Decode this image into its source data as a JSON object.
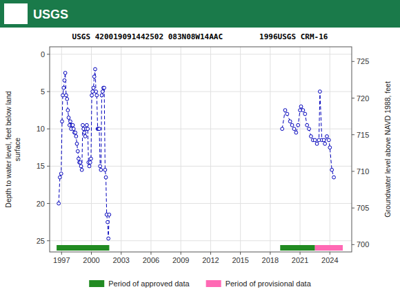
{
  "chart_data": {
    "type": "line",
    "header": "USGS",
    "title": "USGS 420019091442502 083N08W14AAC        1996USGS CRM-16",
    "y_label": "Depth to water level, feet below land\nsurface",
    "y2_label": "Groundwater level above NAVD 1988, feet",
    "xlim": [
      1995.8,
      2026.2
    ],
    "xticks": [
      1997,
      2000,
      2003,
      2006,
      2009,
      2012,
      2015,
      2018,
      2021,
      2024
    ],
    "ylim": [
      26.5,
      -1.0
    ],
    "yticks": [
      0,
      5,
      10,
      15,
      20,
      25
    ],
    "y2lim": [
      699.0,
      727.0
    ],
    "y2ticks": [
      700,
      705,
      710,
      715,
      720,
      725
    ],
    "grid": true,
    "legend": "bottom",
    "series": [
      {
        "color": "#0000bb",
        "marker": "circle",
        "line_style": "dashed",
        "x": [
          1996.71,
          1996.83,
          1996.96,
          1997.05,
          1997.12,
          1997.21,
          1997.29,
          1997.37,
          1997.46,
          1997.55,
          1997.63,
          1997.71,
          1997.8,
          1997.88,
          1997.96,
          1998.04,
          1998.13,
          1998.21,
          1998.29,
          1998.38,
          1998.46,
          1998.54,
          1998.63,
          1998.71,
          1998.79,
          1998.88,
          1998.96,
          1999.04,
          1999.13,
          1999.21,
          1999.29,
          1999.38,
          1999.46,
          1999.54,
          1999.63,
          1999.71,
          1999.79,
          1999.88,
          1999.96,
          2000.04,
          2000.12,
          2000.21,
          2000.29,
          2000.38,
          2000.46,
          2000.54,
          2000.63,
          2000.71,
          2000.79,
          2000.88,
          2000.96,
          2001.04,
          2001.13,
          2001.21,
          2001.29,
          2001.38,
          2001.46,
          2001.54,
          2001.63,
          2001.71,
          2001.79
        ],
        "values": [
          20.0,
          16.5,
          16.0,
          9.0,
          5.5,
          4.5,
          3.5,
          2.5,
          5.5,
          6.0,
          7.5,
          8.5,
          9.5,
          9.0,
          10.0,
          9.5,
          9.5,
          10.0,
          10.5,
          10.5,
          11.0,
          12.0,
          13.0,
          14.0,
          14.5,
          14.5,
          15.0,
          15.5,
          9.5,
          10.0,
          10.5,
          11.0,
          10.0,
          9.5,
          10.0,
          14.5,
          15.0,
          14.5,
          14.0,
          5.5,
          5.0,
          4.5,
          3.0,
          2.0,
          5.0,
          5.5,
          10.0,
          10.0,
          10.0,
          15.0,
          15.5,
          5.5,
          5.0,
          4.5,
          4.5,
          15.5,
          16.5,
          21.5,
          22.5,
          24.7,
          21.5
        ]
      },
      {
        "color": "#0000bb",
        "marker": "circle",
        "line_style": "dashed",
        "x": [
          2019.2,
          2019.5,
          2019.7,
          2020.0,
          2020.2,
          2020.4,
          2020.6,
          2020.8,
          2021.0,
          2021.1,
          2021.3,
          2021.5,
          2021.7,
          2021.9,
          2022.1,
          2022.3
        ],
        "values": [
          10.0,
          7.5,
          8.0,
          9.0,
          9.5,
          10.0,
          10.5,
          9.5,
          7.5,
          7.0,
          7.5,
          8.0,
          9.5,
          10.0,
          11.0,
          11.5
        ]
      },
      {
        "color": "#0000bb",
        "marker": "circle",
        "line_style": "dashed",
        "x": [
          2022.5,
          2022.7,
          2022.9,
          2023.0,
          2023.2,
          2023.4,
          2023.5,
          2023.7,
          2023.9,
          2024.0,
          2024.2,
          2024.4
        ],
        "values": [
          11.5,
          12.0,
          11.5,
          5.0,
          11.5,
          11.5,
          12.0,
          11.0,
          11.5,
          12.5,
          15.5,
          16.5
        ]
      }
    ],
    "periods": [
      {
        "name": "Period of approved data",
        "color": "#228B22",
        "start": [
          1996.5,
          2019.0
        ],
        "end": [
          2001.8,
          2022.5
        ]
      },
      {
        "name": "Period of provisional data",
        "color": "#ff69b4",
        "start": [
          2022.5
        ],
        "end": [
          2025.3
        ]
      }
    ]
  }
}
